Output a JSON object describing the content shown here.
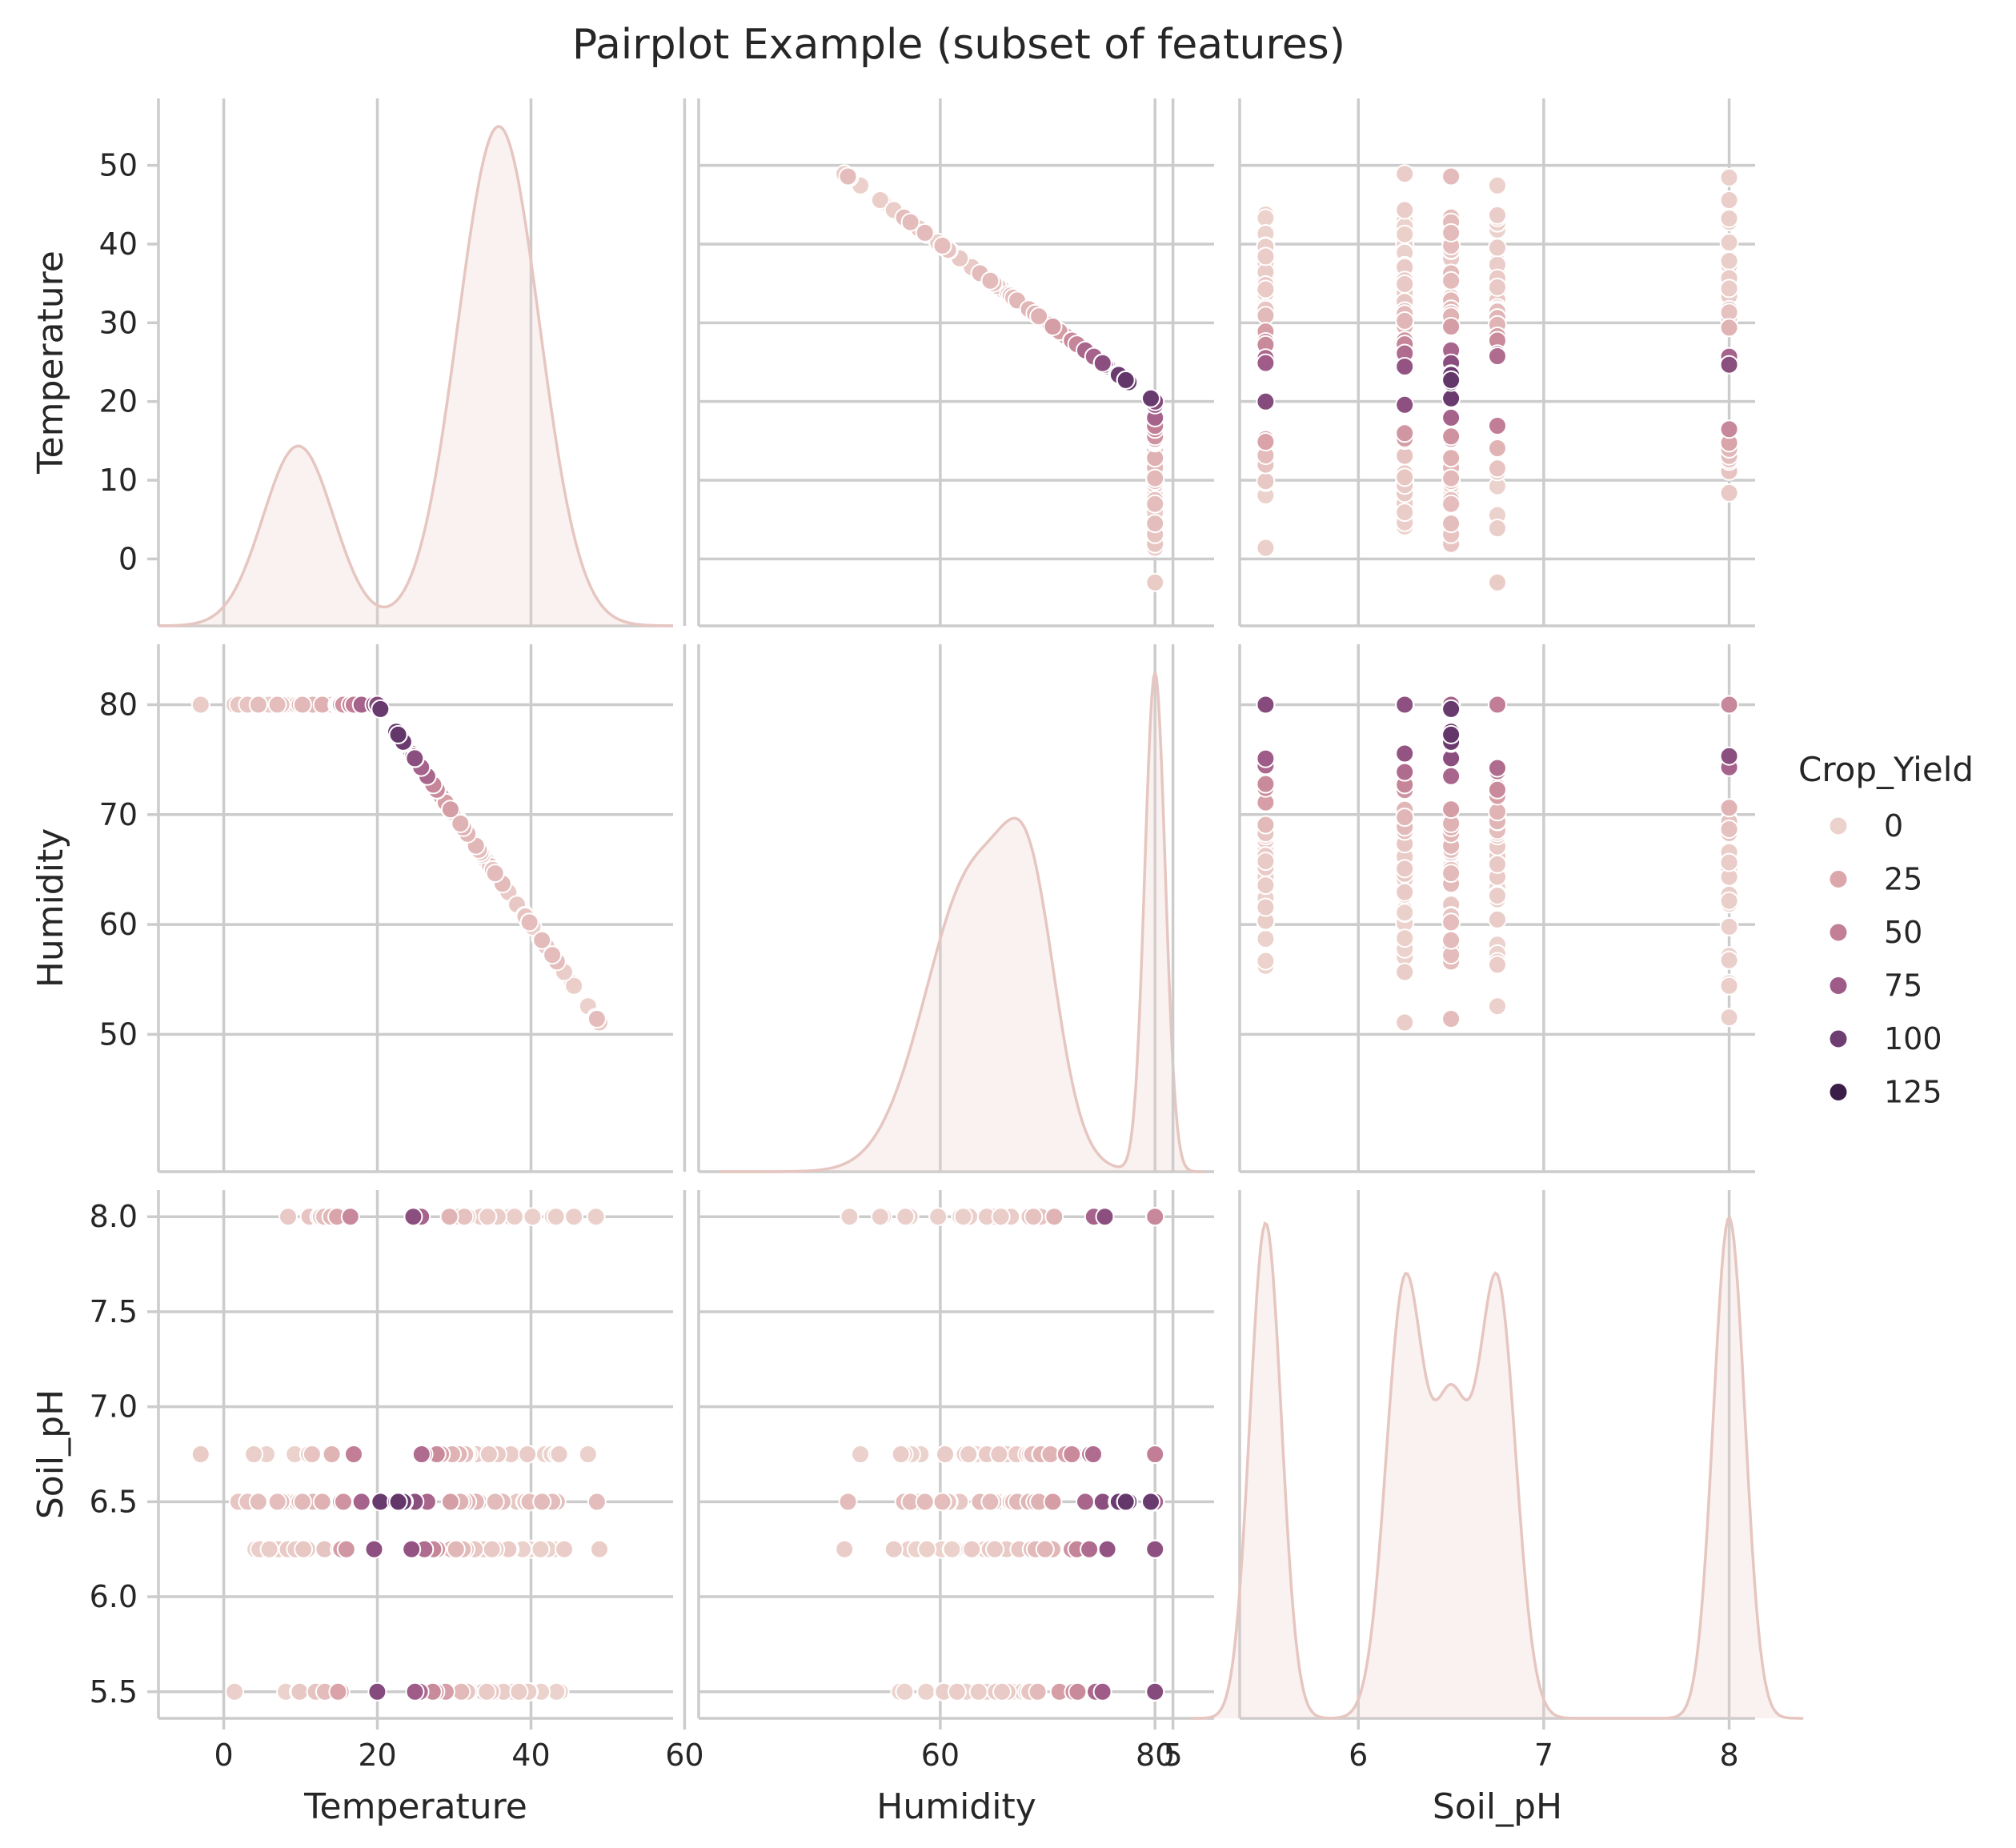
{
  "chart_data": {
    "type": "pairplot",
    "title": "Pairplot Example (subset of features)",
    "variables": [
      "Temperature",
      "Humidity",
      "Soil_pH"
    ],
    "axis_limits": {
      "Temperature": [
        -8.5,
        58.5
      ],
      "Humidity": [
        37.5,
        85.5
      ],
      "Soil_pH": [
        5.36,
        8.14
      ]
    },
    "axis_ticks": {
      "Temperature": {
        "row": [
          0,
          10,
          20,
          30,
          40,
          50
        ],
        "row_labels": [
          "0",
          "10",
          "20",
          "30",
          "40",
          "50"
        ],
        "col": [
          0,
          20,
          40,
          60
        ],
        "col_labels": [
          "0",
          "20",
          "40",
          "60"
        ]
      },
      "Humidity": {
        "row": [
          50,
          60,
          70,
          80
        ],
        "row_labels": [
          "50",
          "60",
          "70",
          "80"
        ],
        "col": [
          60,
          80
        ],
        "col_labels": [
          "60",
          "80"
        ]
      },
      "Soil_pH": {
        "row": [
          5.5,
          6.0,
          6.5,
          7.0,
          7.5,
          8.0
        ],
        "row_labels": [
          "5.5",
          "6.0",
          "6.5",
          "7.0",
          "7.5",
          "8.0"
        ],
        "col": [
          5,
          6,
          7,
          8
        ],
        "col_labels": [
          "5",
          "6",
          "7",
          "8"
        ]
      }
    },
    "diagonal": "kde",
    "offdiagonal": "scatter",
    "grid": true,
    "hue": {
      "name": "Crop_Yield",
      "legend_values": [
        0,
        25,
        50,
        75,
        100,
        125
      ],
      "legend_labels": [
        "0",
        "25",
        "50",
        "75",
        "100",
        "125"
      ],
      "colors": [
        "#ecd2cc",
        "#dba7ab",
        "#c27f96",
        "#9e5b88",
        "#6e3d72",
        "#3a1e48"
      ],
      "range": [
        0,
        140
      ]
    },
    "legend_placement": "right",
    "relationships": {
      "humidity_vs_temperature": "Humidity = 80 for Temperature <= 20; Humidity = 80 - 1.0*(Temperature - 20) for Temperature > 20",
      "crop_yield_peak_temperature": 22
    },
    "kde": {
      "Temperature": {
        "peaks": [
          {
            "x": 9.7,
            "density_rel": 0.36,
            "sd": 4.6
          },
          {
            "x": 35.8,
            "density_rel": 1.0,
            "sd": 5.3
          }
        ],
        "extent": [
          -8.5,
          58.5
        ]
      },
      "Humidity": {
        "peaks": [
          {
            "x": 63.2,
            "density_rel": 0.6,
            "sd": 4.5
          },
          {
            "x": 68.5,
            "density_rel": 0.35,
            "sd": 2.4
          },
          {
            "x": 80.0,
            "density_rel": 1.0,
            "sd": 0.95
          }
        ],
        "extent": [
          39.5,
          84.5
        ]
      },
      "Soil_pH": {
        "peaks": [
          {
            "x": 5.5,
            "density_rel": 0.92,
            "sd": 0.085
          },
          {
            "x": 6.25,
            "density_rel": 0.8,
            "sd": 0.1
          },
          {
            "x": 6.5,
            "density_rel": 0.55,
            "sd": 0.1
          },
          {
            "x": 6.75,
            "density_rel": 0.8,
            "sd": 0.1
          },
          {
            "x": 8.0,
            "density_rel": 0.93,
            "sd": 0.085
          }
        ],
        "extent": [
          5.1,
          8.4
        ]
      }
    },
    "soil_ph_levels": [
      5.5,
      6.25,
      6.5,
      6.75,
      8.0
    ]
  }
}
